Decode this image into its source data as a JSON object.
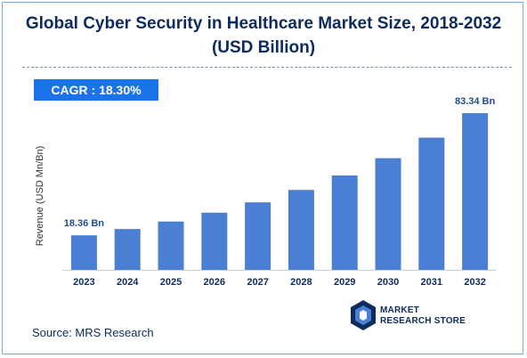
{
  "chart_data": {
    "type": "bar",
    "title": "Global Cyber Security in Healthcare Market Size, 2018-2032",
    "subtitle": "(USD Billion)",
    "ylabel": "Revenue (USD Mn/Bn)",
    "xlabel": "",
    "categories": [
      "2023",
      "2024",
      "2025",
      "2026",
      "2027",
      "2028",
      "2029",
      "2030",
      "2031",
      "2032"
    ],
    "values": [
      18.36,
      21.7,
      25.7,
      30.4,
      35.9,
      42.5,
      50.2,
      59.4,
      70.3,
      83.34
    ],
    "data_labels": {
      "first": "18.36 Bn",
      "last": "83.34 Bn"
    },
    "ylim": [
      0,
      90
    ],
    "grid": false,
    "bar_color": "#4a7fd4"
  },
  "cagr": {
    "label": "CAGR :",
    "value": "18.30%"
  },
  "source": "Source: MRS Research",
  "logo": {
    "line1": "MARKET",
    "line2": "RESEARCH STORE"
  },
  "colors": {
    "title": "#0d2b5c",
    "badge": "#1a73e8",
    "axis_text": "#0d2b5c"
  }
}
